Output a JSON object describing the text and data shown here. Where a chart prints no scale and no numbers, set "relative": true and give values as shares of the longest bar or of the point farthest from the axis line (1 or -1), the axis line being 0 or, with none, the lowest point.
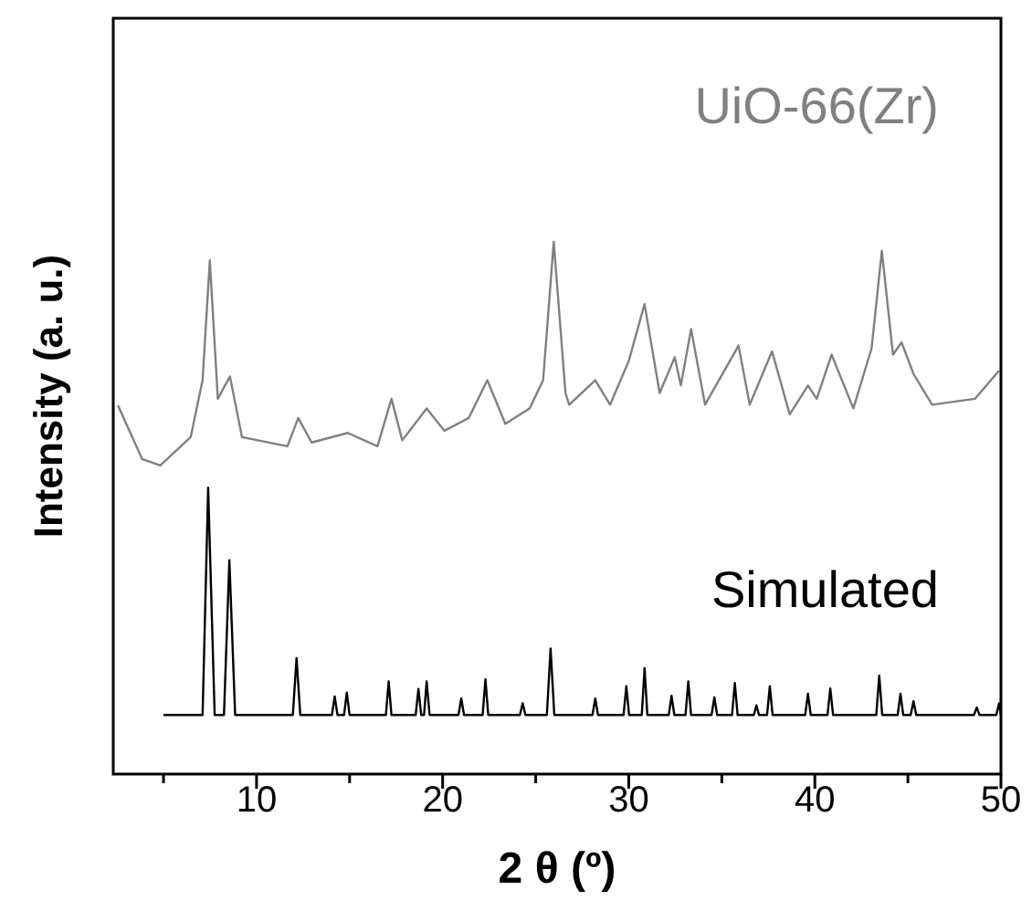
{
  "chart_data": {
    "type": "line",
    "relative": true,
    "xlabel": "2 θ (º)",
    "ylabel": "Intensity (a. u.)",
    "xlim": [
      2.3,
      50
    ],
    "xticks": [
      {
        "value": 5,
        "label": null
      },
      10,
      {
        "value": 15,
        "label": null
      },
      20,
      {
        "value": 25,
        "label": null
      },
      30,
      {
        "value": 35,
        "label": null
      },
      40,
      {
        "value": 45,
        "label": null
      },
      50
    ],
    "grid": false,
    "legend": false,
    "marker": "none",
    "series": [
      {
        "name": "UiO-66(Zr)",
        "color": "#808080",
        "x": [
          2.55,
          3.85,
          4.83,
          6.46,
          7.1,
          7.49,
          7.92,
          8.57,
          9.22,
          11.66,
          12.24,
          12.96,
          14.9,
          16.5,
          17.25,
          17.83,
          19.14,
          20.1,
          21.4,
          22.4,
          23.37,
          24.67,
          25.4,
          25.97,
          26.6,
          26.8,
          28.2,
          29.0,
          30.0,
          30.85,
          31.66,
          32.47,
          32.8,
          33.35,
          34.1,
          35.9,
          36.5,
          37.7,
          38.65,
          39.63,
          40.1,
          40.9,
          42.07,
          43.05,
          43.6,
          44.2,
          44.66,
          45.3,
          46.3,
          48.6,
          49.9
        ],
        "values": [
          0.693,
          0.592,
          0.58,
          0.633,
          0.74,
          0.965,
          0.705,
          0.747,
          0.633,
          0.616,
          0.669,
          0.623,
          0.641,
          0.616,
          0.705,
          0.627,
          0.687,
          0.645,
          0.669,
          0.74,
          0.658,
          0.687,
          0.74,
          1,
          0.716,
          0.694,
          0.74,
          0.694,
          0.776,
          0.883,
          0.716,
          0.783,
          0.73,
          0.836,
          0.694,
          0.805,
          0.694,
          0.794,
          0.676,
          0.73,
          0.705,
          0.788,
          0.687,
          0.8,
          0.983,
          0.788,
          0.811,
          0.752,
          0.694,
          0.705,
          0.758
        ]
      },
      {
        "name": "Simulated",
        "color": "#000000",
        "x": [
          5.0,
          7.1,
          7.4,
          7.75,
          8.25,
          8.54,
          8.85,
          11.95,
          12.15,
          12.35,
          14.05,
          14.2,
          14.35,
          14.7,
          14.85,
          15.0,
          16.95,
          17.1,
          17.25,
          18.55,
          18.7,
          18.85,
          19.0,
          19.14,
          19.3,
          20.85,
          21.0,
          21.15,
          22.15,
          22.3,
          22.45,
          24.15,
          24.3,
          24.45,
          25.6,
          25.8,
          26.0,
          28.05,
          28.2,
          28.35,
          29.72,
          29.87,
          30.02,
          30.7,
          30.85,
          31.0,
          32.15,
          32.3,
          32.45,
          33.05,
          33.2,
          33.35,
          34.45,
          34.6,
          34.75,
          35.55,
          35.7,
          35.85,
          36.72,
          36.86,
          37.0,
          37.43,
          37.58,
          37.73,
          39.48,
          39.63,
          39.78,
          40.68,
          40.83,
          40.98,
          43.3,
          43.46,
          43.62,
          44.45,
          44.6,
          44.75,
          45.15,
          45.3,
          45.45,
          48.55,
          48.7,
          48.85,
          49.75,
          49.9,
          50
        ],
        "values": [
          0.111,
          0.111,
          0.538,
          0.111,
          0.111,
          0.402,
          0.111,
          0.111,
          0.218,
          0.111,
          0.111,
          0.146,
          0.111,
          0.111,
          0.153,
          0.111,
          0.111,
          0.174,
          0.111,
          0.111,
          0.16,
          0.111,
          0.111,
          0.174,
          0.111,
          0.111,
          0.142,
          0.111,
          0.111,
          0.178,
          0.111,
          0.111,
          0.133,
          0.111,
          0.111,
          0.236,
          0.111,
          0.111,
          0.142,
          0.111,
          0.111,
          0.165,
          0.111,
          0.111,
          0.199,
          0.111,
          0.111,
          0.147,
          0.111,
          0.111,
          0.174,
          0.111,
          0.111,
          0.144,
          0.111,
          0.111,
          0.171,
          0.111,
          0.111,
          0.129,
          0.111,
          0.111,
          0.165,
          0.111,
          0.111,
          0.151,
          0.111,
          0.111,
          0.161,
          0.111,
          0.111,
          0.185,
          0.111,
          0.111,
          0.151,
          0.111,
          0.111,
          0.137,
          0.111,
          0.111,
          0.125,
          0.111,
          0.111,
          0.133,
          0.111
        ]
      }
    ]
  }
}
